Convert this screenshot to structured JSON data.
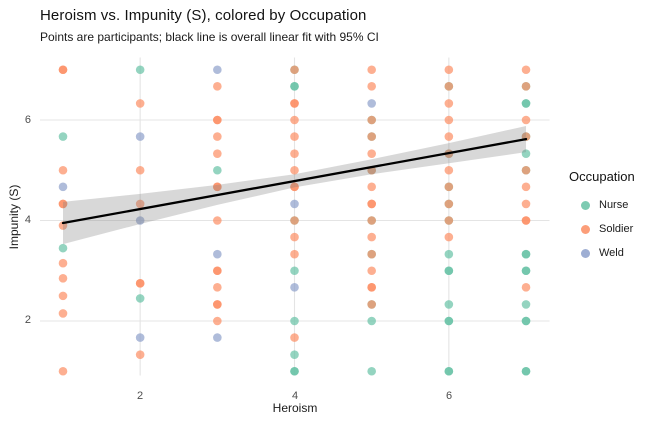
{
  "chart_data": {
    "type": "scatter",
    "title": "Heroism vs. Impunity (S), colored by Occupation",
    "subtitle": "Points are participants; black line is overall linear fit with 95% CI",
    "xlabel": "Heroism",
    "ylabel": "Impunity (S)",
    "xlim": [
      0.7,
      7.3
    ],
    "ylim": [
      0.65,
      7.35
    ],
    "xticks": [
      2,
      4,
      6
    ],
    "yticks": [
      2,
      4,
      6
    ],
    "grid": "major-only",
    "background": "#ffffff",
    "gridline_color": "#e4e4e4",
    "point_opacity": 0.7,
    "legend": {
      "title": "Occupation",
      "position": "right",
      "entries": [
        {
          "label": "Nurse",
          "color": "#66C2A5"
        },
        {
          "label": "Soldier",
          "color": "#FC8D62"
        },
        {
          "label": "Weld",
          "color": "#8DA0CB"
        }
      ]
    },
    "series": [
      {
        "name": "Nurse",
        "color": "#66C2A5",
        "points": [
          [
            1,
            5.67
          ],
          [
            1,
            3.45
          ],
          [
            2,
            7
          ],
          [
            2,
            2.45
          ],
          [
            3,
            5
          ],
          [
            4,
            7
          ],
          [
            4,
            6.67
          ],
          [
            4,
            6.67
          ],
          [
            4,
            4
          ],
          [
            4,
            3
          ],
          [
            4,
            2
          ],
          [
            4,
            1.33
          ],
          [
            4,
            1
          ],
          [
            4,
            1
          ],
          [
            5,
            6
          ],
          [
            5,
            5.67
          ],
          [
            5,
            5
          ],
          [
            5,
            4
          ],
          [
            5,
            3.33
          ],
          [
            5,
            2.33
          ],
          [
            5,
            2
          ],
          [
            5,
            1
          ],
          [
            6,
            6.67
          ],
          [
            6,
            5.33
          ],
          [
            6,
            4.67
          ],
          [
            6,
            4.33
          ],
          [
            6,
            4
          ],
          [
            6,
            3.33
          ],
          [
            6,
            3
          ],
          [
            6,
            3
          ],
          [
            6,
            2.33
          ],
          [
            6,
            2
          ],
          [
            6,
            2
          ],
          [
            6,
            1
          ],
          [
            6,
            1
          ],
          [
            7,
            6.67
          ],
          [
            7,
            6.33
          ],
          [
            7,
            6.33
          ],
          [
            7,
            5.67
          ],
          [
            7,
            5.33
          ],
          [
            7,
            5
          ],
          [
            7,
            3.33
          ],
          [
            7,
            3.33
          ],
          [
            7,
            3
          ],
          [
            7,
            3
          ],
          [
            7,
            2.33
          ],
          [
            7,
            2
          ],
          [
            7,
            2
          ],
          [
            7,
            1
          ],
          [
            7,
            1
          ]
        ]
      },
      {
        "name": "Soldier",
        "color": "#FC8D62",
        "points": [
          [
            1,
            7
          ],
          [
            1,
            7
          ],
          [
            1,
            5
          ],
          [
            1,
            4.33
          ],
          [
            1,
            4.33
          ],
          [
            1,
            3.9
          ],
          [
            1,
            3.15
          ],
          [
            1,
            2.85
          ],
          [
            1,
            2.5
          ],
          [
            1,
            2.15
          ],
          [
            1,
            1
          ],
          [
            2,
            6.33
          ],
          [
            2,
            5
          ],
          [
            2,
            4.33
          ],
          [
            2,
            2.75
          ],
          [
            2,
            2.75
          ],
          [
            2,
            1.33
          ],
          [
            3,
            6.67
          ],
          [
            3,
            6
          ],
          [
            3,
            6
          ],
          [
            3,
            5.67
          ],
          [
            3,
            5.33
          ],
          [
            3,
            4.67
          ],
          [
            3,
            4.67
          ],
          [
            3,
            4
          ],
          [
            3,
            3
          ],
          [
            3,
            3
          ],
          [
            3,
            2.67
          ],
          [
            3,
            2.33
          ],
          [
            3,
            2.33
          ],
          [
            3,
            2
          ],
          [
            4,
            7
          ],
          [
            4,
            6.33
          ],
          [
            4,
            6.33
          ],
          [
            4,
            6
          ],
          [
            4,
            5.67
          ],
          [
            4,
            5.33
          ],
          [
            4,
            5
          ],
          [
            4,
            4.67
          ],
          [
            4,
            4.67
          ],
          [
            4,
            4
          ],
          [
            4,
            3.67
          ],
          [
            4,
            3.33
          ],
          [
            4,
            1.67
          ],
          [
            5,
            7
          ],
          [
            5,
            6.67
          ],
          [
            5,
            6
          ],
          [
            5,
            5.67
          ],
          [
            5,
            5.33
          ],
          [
            5,
            5
          ],
          [
            5,
            4.67
          ],
          [
            5,
            4.33
          ],
          [
            5,
            4.33
          ],
          [
            5,
            4
          ],
          [
            5,
            3.67
          ],
          [
            5,
            3.33
          ],
          [
            5,
            3
          ],
          [
            5,
            2.67
          ],
          [
            5,
            2.67
          ],
          [
            5,
            2.33
          ],
          [
            6,
            7
          ],
          [
            6,
            6.67
          ],
          [
            6,
            6.33
          ],
          [
            6,
            6
          ],
          [
            6,
            5.67
          ],
          [
            6,
            5.33
          ],
          [
            6,
            5
          ],
          [
            6,
            4.67
          ],
          [
            6,
            4.33
          ],
          [
            6,
            4
          ],
          [
            6,
            3.67
          ],
          [
            7,
            7
          ],
          [
            7,
            6.67
          ],
          [
            7,
            6
          ],
          [
            7,
            5.67
          ],
          [
            7,
            5
          ],
          [
            7,
            4.67
          ],
          [
            7,
            4.33
          ],
          [
            7,
            4
          ],
          [
            7,
            4
          ],
          [
            7,
            2.67
          ]
        ]
      },
      {
        "name": "Weld",
        "color": "#8DA0CB",
        "points": [
          [
            1,
            4.67
          ],
          [
            2,
            5.67
          ],
          [
            2,
            4
          ],
          [
            2,
            1.67
          ],
          [
            3,
            7
          ],
          [
            3,
            3.33
          ],
          [
            3,
            1.67
          ],
          [
            4,
            4.33
          ],
          [
            4,
            2.67
          ],
          [
            5,
            6.33
          ]
        ]
      }
    ],
    "fit_line": {
      "color": "#000000",
      "x": [
        1,
        7
      ],
      "y": [
        3.95,
        5.62
      ]
    },
    "ci_band": {
      "color": "rgba(127,127,127,0.30)",
      "x": [
        1,
        2,
        3,
        4,
        5,
        6,
        7
      ],
      "upper": [
        4.37,
        4.53,
        4.71,
        4.92,
        5.22,
        5.54,
        5.88
      ],
      "lower": [
        3.53,
        3.93,
        4.31,
        4.66,
        4.92,
        5.14,
        5.36
      ]
    }
  }
}
